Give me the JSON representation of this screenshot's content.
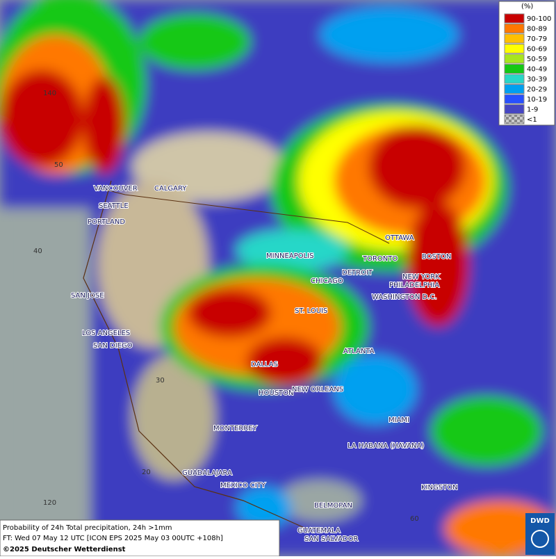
{
  "header": {
    "unit": "(%)"
  },
  "legend": {
    "items": [
      {
        "label": "90-100",
        "color": "#c80000"
      },
      {
        "label": "80-89",
        "color": "#ff7800"
      },
      {
        "label": "70-79",
        "color": "#ffc000"
      },
      {
        "label": "60-69",
        "color": "#ffff00"
      },
      {
        "label": "50-59",
        "color": "#a8e61e"
      },
      {
        "label": "40-49",
        "color": "#14c814"
      },
      {
        "label": "30-39",
        "color": "#28d7c8"
      },
      {
        "label": "20-29",
        "color": "#00a0f0"
      },
      {
        "label": "10-19",
        "color": "#2850ff"
      },
      {
        "label": "1-9",
        "color": "#4646c3"
      },
      {
        "label": "<1",
        "color": "#aaaaaa"
      }
    ]
  },
  "grid_labels": [
    "140",
    "50",
    "40",
    "30",
    "20",
    "120",
    "60"
  ],
  "cities": [
    "VANCOUVER",
    "CALGARY",
    "SEATTLE",
    "PORTLAND",
    "MINNEAPOLIS",
    "TORONTO",
    "OTTAWA",
    "BOSTON",
    "DETROIT",
    "NEW YORK",
    "PHILADELPHIA",
    "CHICAGO",
    "WASHINGTON D.C.",
    "SAN JOSE",
    "ST. LOUIS",
    "LOS ANGELES",
    "SAN DIEGO",
    "ATLANTA",
    "DALLAS",
    "HOUSTON",
    "NEW ORLEANS",
    "MIAMI",
    "MONTERREY",
    "LA HABANA (HAVANA)",
    "GUADALAJARA",
    "MEXICO CITY",
    "KINGSTON",
    "BELMOPAN",
    "GUATEMALA",
    "SAN SALVADOR"
  ],
  "footer": {
    "line1": "Probability of 24h Total precipitation, 24h >1mm",
    "line2": "FT: Wed 07 May 12 UTC [ICON EPS 2025 May 03 00UTC +108h]",
    "line3": "©2025 Deutscher Wetterdienst"
  },
  "logo": "DWD"
}
